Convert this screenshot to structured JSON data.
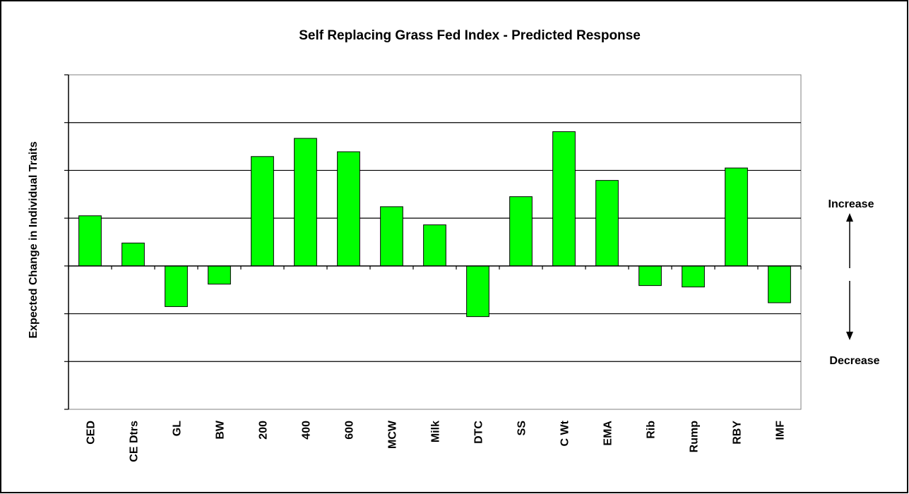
{
  "chart_data": {
    "type": "bar",
    "title": "Self Replacing Grass Fed Index - Predicted Response",
    "xlabel": "",
    "ylabel": "Expected Change  in Individual Traits",
    "categories": [
      "CED",
      "CE Dtrs",
      "GL",
      "BW",
      "200",
      "400",
      "600",
      "MCW",
      "Milk",
      "DTC",
      "SS",
      "C Wt",
      "EMA",
      "Rib",
      "Rump",
      "RBY",
      "IMF"
    ],
    "values": [
      1.05,
      0.48,
      -0.85,
      -0.38,
      2.29,
      2.67,
      2.39,
      1.24,
      0.86,
      -1.06,
      1.45,
      2.81,
      1.79,
      -0.41,
      -0.44,
      2.05,
      -0.77
    ],
    "ylim": [
      -3,
      4
    ],
    "y_ticks_labeled": false,
    "grid": true,
    "bar_color": "#00FF00"
  },
  "annotations": {
    "increase": "Increase",
    "decrease": "Decrease"
  }
}
